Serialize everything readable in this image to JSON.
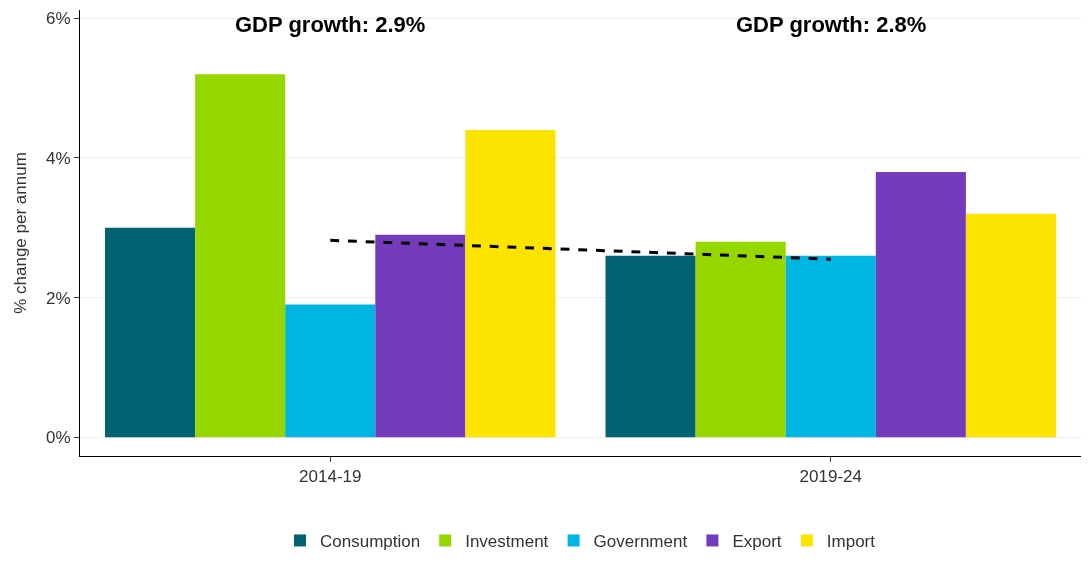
{
  "chart_data": {
    "type": "bar",
    "categories": [
      "2014-19",
      "2019-24"
    ],
    "ylabel": "% change per annum",
    "series": [
      {
        "name": "Consumption",
        "color": "#006272",
        "values": [
          3.0,
          2.6
        ]
      },
      {
        "name": "Investment",
        "color": "#97d700",
        "values": [
          5.2,
          2.8
        ]
      },
      {
        "name": "Government",
        "color": "#00b5e2",
        "values": [
          1.9,
          2.6
        ]
      },
      {
        "name": "Export",
        "color": "#753bbd",
        "values": [
          2.9,
          3.8
        ]
      },
      {
        "name": "Import",
        "color": "#fce300",
        "values": [
          4.4,
          3.2
        ]
      },
      {
        "type": "line",
        "color": "#000000",
        "line_style": "dashed",
        "values": [
          2.82,
          2.55
        ]
      }
    ],
    "annotations": [
      "GDP growth: 2.9%",
      "GDP growth: 2.8%"
    ],
    "ylim": [
      -0.27,
      6.12
    ],
    "yticks": [
      {
        "value": 0,
        "label": "0%"
      },
      {
        "value": 2,
        "label": "2%"
      },
      {
        "value": 4,
        "label": "4%"
      },
      {
        "value": 6,
        "label": "6%"
      }
    ],
    "grid": "y",
    "legend": "bottom"
  }
}
